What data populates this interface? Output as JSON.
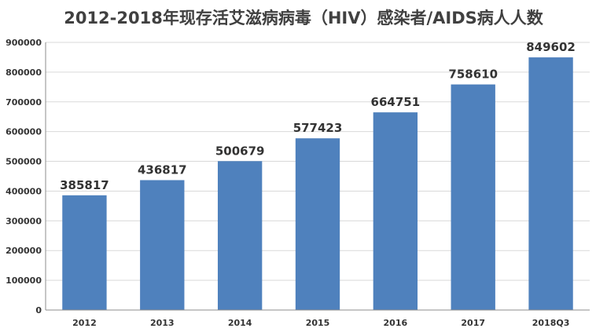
{
  "chart_data": {
    "type": "bar",
    "title": "2012-2018年现存活艾滋病病毒（HIV）感染者/AIDS病人人数",
    "categories": [
      "2012",
      "2013",
      "2014",
      "2015",
      "2016",
      "2017",
      "2018Q3"
    ],
    "values": [
      385817,
      436817,
      500679,
      577423,
      664751,
      758610,
      849602
    ],
    "data_labels": [
      "385817",
      "436817",
      "500679",
      "577423",
      "664751",
      "758610",
      "849602"
    ],
    "y_ticks": [
      "0",
      "100000",
      "200000",
      "300000",
      "400000",
      "500000",
      "600000",
      "700000",
      "800000",
      "900000"
    ],
    "ylim": [
      0,
      900000
    ],
    "grid": true,
    "legend": "none",
    "colors": {
      "bar": "#4f81bd",
      "grid": "#d9d9d9",
      "text": "#333333",
      "title": "#404040"
    }
  }
}
